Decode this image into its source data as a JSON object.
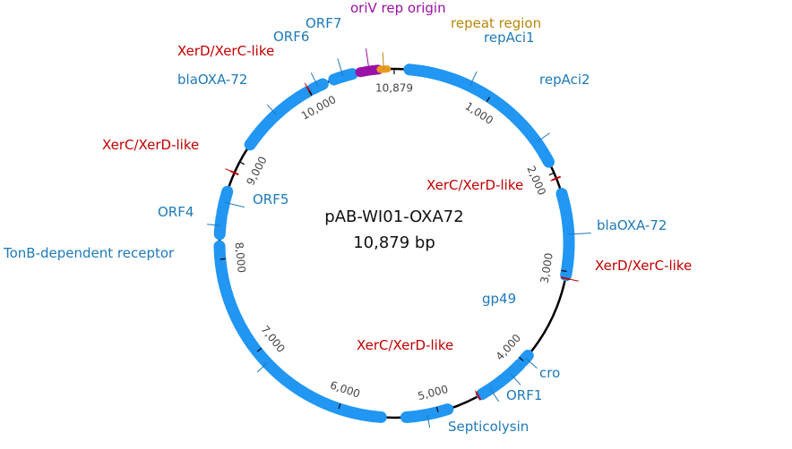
{
  "plasmid": {
    "name": "pAB-WI01-OXA72",
    "size_label": "10,879 bp",
    "length": 10879
  },
  "colors": {
    "backbone": "#000000",
    "cds": "#2196f3",
    "cds_label": "#1f7ab8",
    "site": "#c00000",
    "rep_origin": "#9b10a6",
    "repeat_region": "#e89a1e",
    "repeat_label": "#b8860b"
  },
  "ticks": [
    {
      "pos": 1000,
      "label": "1,000"
    },
    {
      "pos": 2000,
      "label": "2,000"
    },
    {
      "pos": 3000,
      "label": "3,000"
    },
    {
      "pos": 4000,
      "label": "4,000"
    },
    {
      "pos": 5000,
      "label": "5,000"
    },
    {
      "pos": 6000,
      "label": "6,000"
    },
    {
      "pos": 7000,
      "label": "7,000"
    },
    {
      "pos": 8000,
      "label": "8,000"
    },
    {
      "pos": 9000,
      "label": "9,000"
    },
    {
      "pos": 10000,
      "label": "10,000"
    },
    {
      "pos": 10879,
      "label": "10,879"
    }
  ],
  "features": [
    {
      "name": "repAci1",
      "type": "cds",
      "start": 150,
      "end": 1400,
      "strand": 1
    },
    {
      "name": "repAci2",
      "type": "cds",
      "start": 1420,
      "end": 1880,
      "strand": 1
    },
    {
      "name": "blaOXA-72",
      "type": "cds",
      "start": 2220,
      "end": 3040,
      "strand": 1
    },
    {
      "name": "gp49",
      "type": "cds",
      "start": 3930,
      "end": 4000,
      "strand": 1
    },
    {
      "name": "cro",
      "type": "cds",
      "start": 4050,
      "end": 4310,
      "strand": -1
    },
    {
      "name": "ORF1",
      "type": "cds",
      "start": 4330,
      "end": 4530,
      "strand": -1
    },
    {
      "name": "Septicolysin",
      "type": "cds",
      "start": 4900,
      "end": 5320,
      "strand": -1
    },
    {
      "name": "TonB-dependent receptor",
      "type": "cds",
      "start": 5570,
      "end": 8130,
      "strand": -1
    },
    {
      "name": "ORF4",
      "type": "cds",
      "start": 8250,
      "end": 8420,
      "strand": 1
    },
    {
      "name": "ORF5",
      "type": "cds",
      "start": 8460,
      "end": 8680,
      "strand": -1
    },
    {
      "name": "blaOXA-72",
      "type": "cds",
      "start": 9200,
      "end": 9990,
      "strand": -1
    },
    {
      "name": "ORF6",
      "type": "cds",
      "start": 10040,
      "end": 10150,
      "strand": -1
    },
    {
      "name": "ORF7",
      "type": "cds",
      "start": 10270,
      "end": 10460,
      "strand": -1
    },
    {
      "name": "oriV rep origin",
      "type": "rep_origin",
      "start": 10540,
      "end": 10720,
      "strand": 1
    },
    {
      "name": "repeat region",
      "type": "repeat_region",
      "start": 10740,
      "end": 10810,
      "strand": 0
    }
  ],
  "sites": [
    {
      "name": "XerC/XerD-like",
      "pos": 2060
    },
    {
      "name": "XerD/XerC-like",
      "pos": 3070
    },
    {
      "name": "XerC/XerD-like",
      "pos": 4570
    },
    {
      "name": "XerC/XerD-like",
      "pos": 8880
    },
    {
      "name": "XerD/XerC-like",
      "pos": 10000
    }
  ]
}
